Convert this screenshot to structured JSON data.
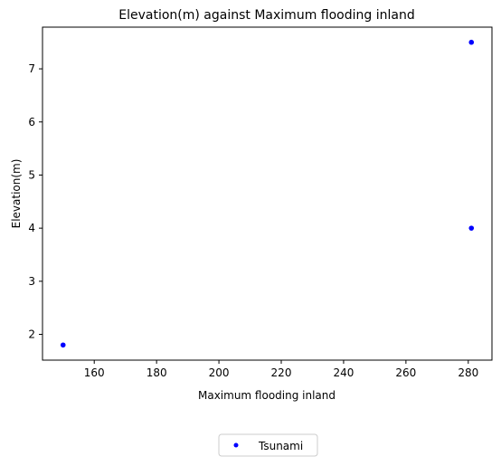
{
  "chart_data": {
    "type": "scatter",
    "title": "Elevation(m) against Maximum flooding inland",
    "xlabel": "Maximum flooding inland",
    "ylabel": "Elevation(m)",
    "xlim": [
      143.4,
      287.6
    ],
    "ylim": [
      1.515,
      7.785
    ],
    "xticks": [
      160,
      180,
      200,
      220,
      240,
      260,
      280
    ],
    "yticks": [
      2,
      3,
      4,
      5,
      6,
      7
    ],
    "grid": false,
    "legend_position": "below-center",
    "series": [
      {
        "name": "Tsunami",
        "color": "#0000ff",
        "points": [
          {
            "x": 150,
            "y": 1.8
          },
          {
            "x": 281,
            "y": 4.0
          },
          {
            "x": 281,
            "y": 7.5
          }
        ]
      }
    ]
  }
}
